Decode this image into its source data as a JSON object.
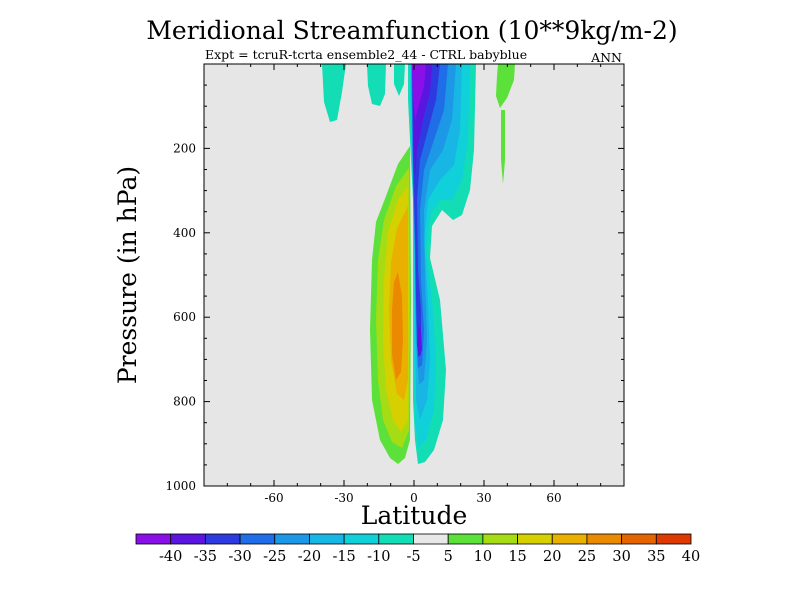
{
  "chart_data": {
    "type": "contour",
    "title": "Meridional Streamfunction (10**9kg/m-2)",
    "subtitle": "Expt = tcruR-tcrta ensemble2_44 - CTRL babyblue",
    "season": "ANN",
    "xlabel": "Latitude",
    "ylabel": "Pressure (in hPa)",
    "xlim": [
      -90,
      90
    ],
    "ylim": [
      1000,
      0
    ],
    "xticks": [
      -60,
      -30,
      0,
      30,
      60
    ],
    "yticks": [
      200,
      400,
      600,
      800,
      1000
    ],
    "missing_fill": "#e6e6e6",
    "levels": [
      "-40",
      "-35",
      "-30",
      "-25",
      "-20",
      "-15",
      "-10",
      "-5",
      "5",
      "10",
      "15",
      "20",
      "25",
      "30",
      "35",
      "40"
    ],
    "colors": [
      "#8a10e8",
      "#5a16e0",
      "#2c3ae0",
      "#1f6ee8",
      "#1c98e6",
      "#18b6e4",
      "#10d0da",
      "#12ddb4",
      "#e8e8e8",
      "#5ce03a",
      "#a6dc14",
      "#d6d000",
      "#eab000",
      "#ea8a00",
      "#e46400",
      "#dc3a00"
    ],
    "features": [
      {
        "name": "northern-hadley-cell",
        "sign": "negative",
        "center": {
          "lat": 2,
          "p": 680
        },
        "min": -40
      },
      {
        "name": "southern-cell",
        "sign": "positive",
        "center": {
          "lat": -6,
          "p": 660
        },
        "max": 25
      },
      {
        "name": "upper-negative-cell",
        "sign": "negative",
        "center": {
          "lat": 10,
          "p": 20
        },
        "min": -40
      },
      {
        "name": "upper-positive-streak",
        "sign": "positive",
        "center": {
          "lat": 37,
          "p": 30
        },
        "max": 10
      }
    ]
  }
}
